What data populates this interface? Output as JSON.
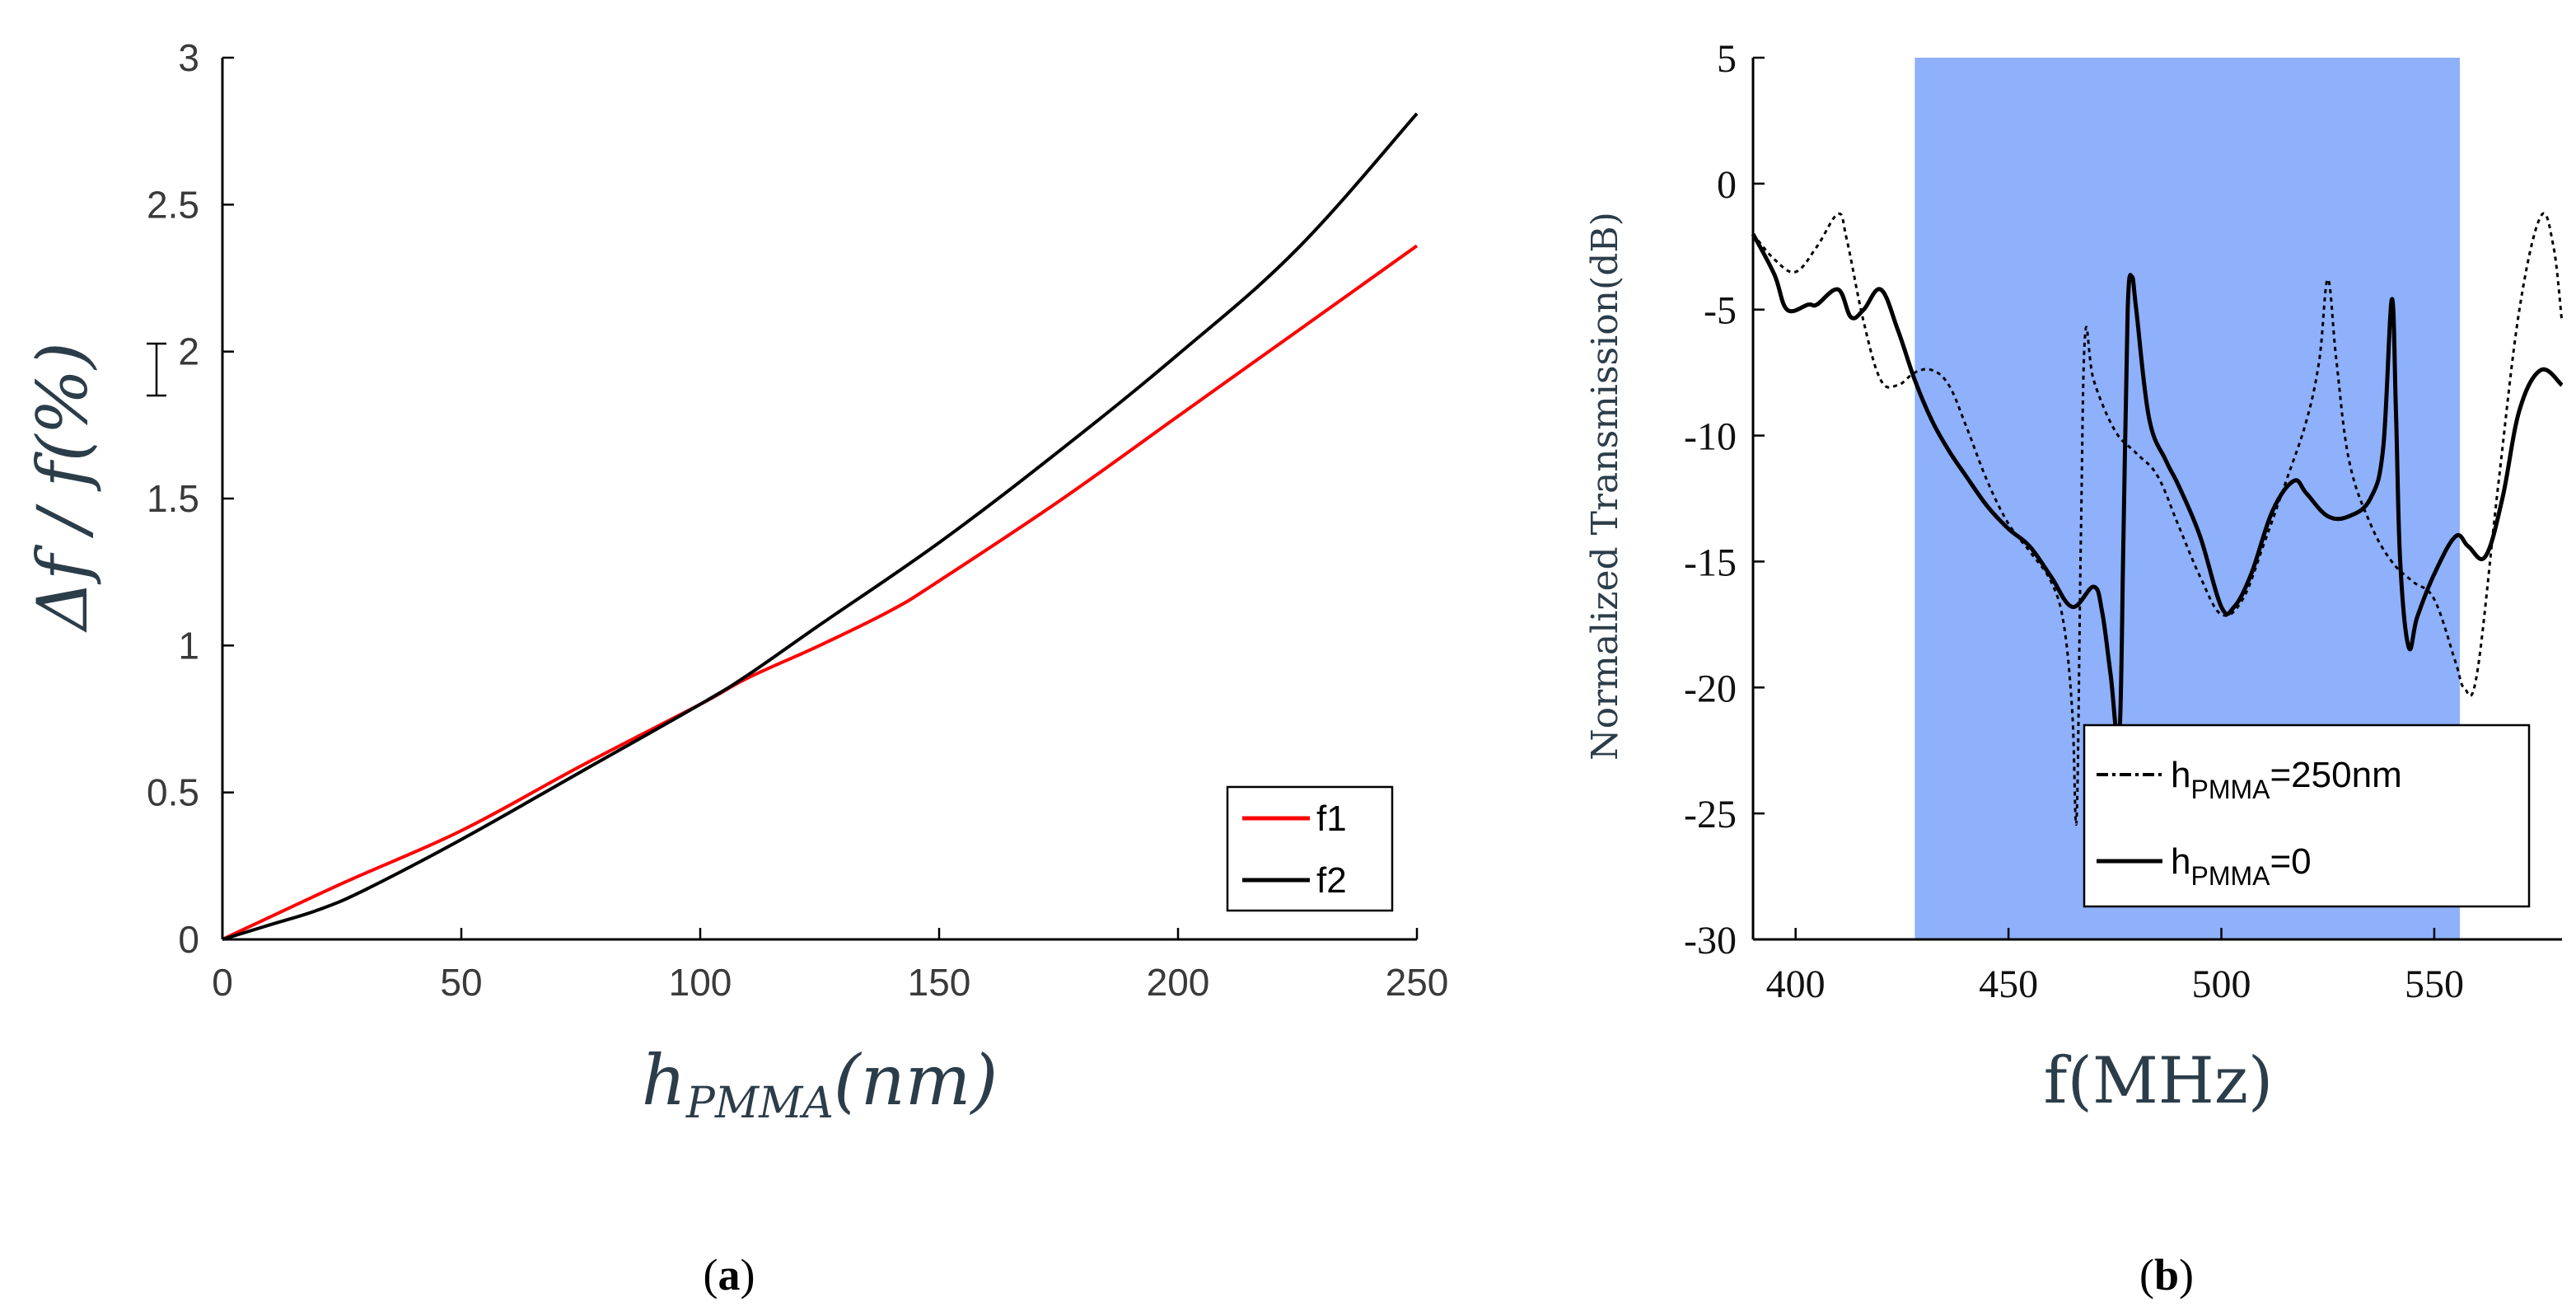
{
  "chart_data": [
    {
      "type": "line",
      "panel": "a",
      "caption": "a",
      "title": "",
      "xlabel": {
        "main": "h",
        "sub": "PMMA",
        "tail": "(nm)"
      },
      "ylabel": "Δf / f(%)",
      "xlim": [
        0,
        250
      ],
      "ylim": [
        0,
        3
      ],
      "xticks": [
        "0",
        "50",
        "100",
        "150",
        "200",
        "250"
      ],
      "yticks": [
        "0",
        "0.5",
        "1",
        "1.5",
        "2",
        "2.5",
        "3"
      ],
      "legend_position": "bottom-right",
      "series": [
        {
          "name": "f1",
          "color": "#ff0000",
          "x": [
            0,
            25,
            50,
            75,
            100,
            110,
            125,
            140,
            150,
            175,
            200,
            225,
            250
          ],
          "y": [
            0,
            0.19,
            0.37,
            0.59,
            0.8,
            0.89,
            1.0,
            1.12,
            1.22,
            1.49,
            1.78,
            2.07,
            2.36
          ]
        },
        {
          "name": "f2",
          "color": "#000000",
          "x": [
            0,
            10,
            20,
            30,
            50,
            75,
            100,
            110,
            125,
            150,
            175,
            200,
            225,
            250
          ],
          "y": [
            0,
            0.05,
            0.1,
            0.17,
            0.34,
            0.57,
            0.8,
            0.9,
            1.07,
            1.35,
            1.66,
            1.99,
            2.35,
            2.81
          ]
        }
      ]
    },
    {
      "type": "line",
      "panel": "b",
      "caption": "b",
      "title": "",
      "xlabel": "f(MHz)",
      "ylabel": "Normalized Transmission(dB)",
      "xlim": [
        390,
        580
      ],
      "ylim": [
        -30,
        5
      ],
      "xticks": [
        "400",
        "450",
        "500",
        "550"
      ],
      "yticks": [
        "5",
        "0",
        "-5",
        "-10",
        "-15",
        "-20",
        "-25",
        "-30"
      ],
      "shaded_region": {
        "x": [
          428,
          556
        ],
        "color": "#8fb0fb"
      },
      "legend_position": "bottom-right",
      "series": [
        {
          "name": "h_PMMA=250nm",
          "label_main": "h",
          "label_sub": "PMMA",
          "label_tail": "=250nm",
          "style": "dotted",
          "color": "#000000",
          "x": [
            390,
            395,
            400,
            405,
            410,
            412,
            416,
            420,
            424,
            428,
            432,
            436,
            440,
            445,
            450,
            455,
            460,
            463,
            465,
            466,
            467,
            468,
            470,
            475,
            480,
            485,
            490,
            495,
            500,
            505,
            510,
            515,
            520,
            523,
            525,
            527,
            530,
            535,
            540,
            545,
            550,
            555,
            557,
            560,
            565,
            570,
            575,
            578,
            580
          ],
          "y": [
            -2,
            -3,
            -3.5,
            -2.5,
            -1.2,
            -2.2,
            -5.5,
            -7.8,
            -8,
            -7.5,
            -7.4,
            -8,
            -9.6,
            -11.8,
            -13.5,
            -14.6,
            -15.8,
            -17.5,
            -21,
            -25.2,
            -14,
            -6,
            -7.8,
            -9.8,
            -10.7,
            -11.6,
            -13.6,
            -15.6,
            -17.1,
            -16.5,
            -14.3,
            -11.9,
            -9.4,
            -7,
            -3.8,
            -7,
            -11,
            -13.5,
            -15,
            -15.8,
            -16.5,
            -19,
            -20,
            -19.5,
            -12,
            -5,
            -1.3,
            -2.5,
            -5.5
          ]
        },
        {
          "name": "h_PMMA=0",
          "label_main": "h",
          "label_sub": "PMMA",
          "label_tail": "=0",
          "style": "solid",
          "color": "#000000",
          "x": [
            390,
            395,
            398,
            403,
            405,
            410,
            413,
            416,
            420,
            424,
            428,
            432,
            436,
            440,
            445,
            450,
            455,
            460,
            465,
            470,
            472,
            474,
            476,
            477,
            478,
            479,
            480,
            483,
            487,
            490,
            495,
            500,
            503,
            507,
            512,
            517,
            520,
            525,
            530,
            535,
            538,
            540,
            541,
            542,
            544,
            546,
            550,
            555,
            558,
            562,
            566,
            570,
            575,
            580
          ],
          "y": [
            -2,
            -3.6,
            -5,
            -4.8,
            -4.8,
            -4.2,
            -5.3,
            -5,
            -4.2,
            -5.8,
            -7.8,
            -9.4,
            -10.6,
            -11.6,
            -12.8,
            -13.7,
            -14.4,
            -15.6,
            -16.8,
            -16,
            -17,
            -19.5,
            -22,
            -14,
            -5,
            -3.7,
            -5,
            -9.3,
            -11,
            -12,
            -14,
            -16.8,
            -16.8,
            -15.5,
            -13,
            -11.8,
            -12.3,
            -13.2,
            -13.2,
            -12.5,
            -10.5,
            -4.6,
            -9,
            -15,
            -18.4,
            -17.2,
            -15.5,
            -14,
            -14.4,
            -14.8,
            -12.5,
            -9,
            -7.4,
            -8
          ]
        }
      ]
    }
  ]
}
